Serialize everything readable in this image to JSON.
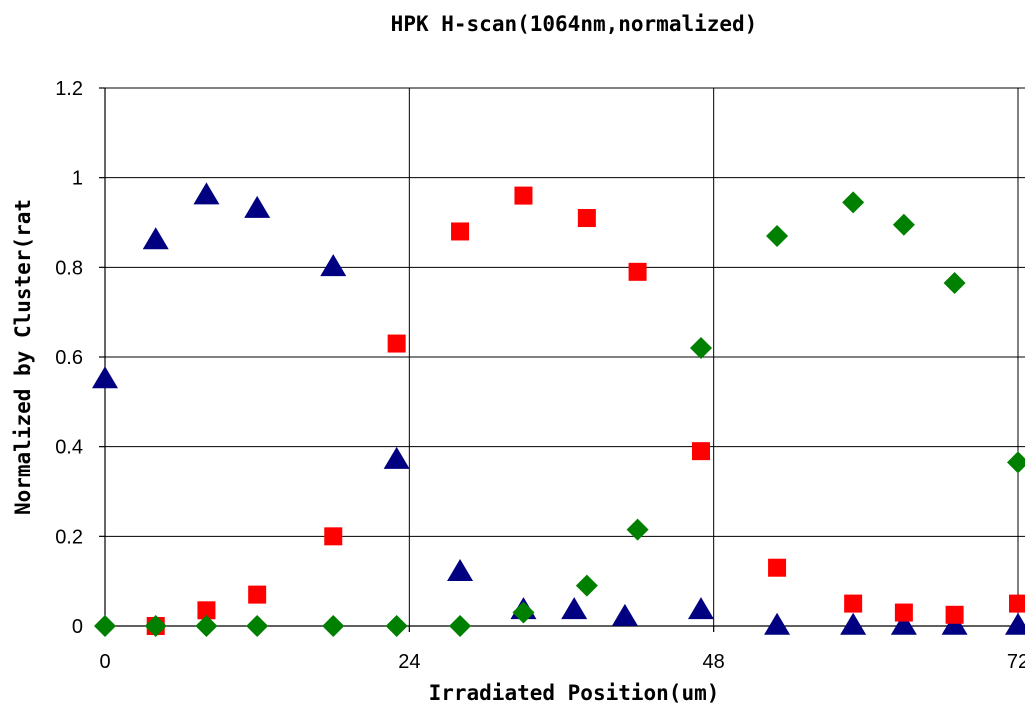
{
  "chart_data": {
    "type": "scatter",
    "title": "HPK H-scan(1064nm,normalized)",
    "xlabel": "Irradiated Position(um)",
    "ylabel": "Normalized by Cluster(rat",
    "xlim": [
      0,
      72
    ],
    "ylim": [
      0,
      1.2
    ],
    "x_ticks": [
      0,
      24,
      48,
      72
    ],
    "x_tick_labels": [
      "0",
      "24",
      "48",
      "72"
    ],
    "y_ticks": [
      0,
      0.2,
      0.4,
      0.6,
      0.8,
      1,
      1.2
    ],
    "y_tick_labels": [
      "0",
      "0.2",
      "0.4",
      "0.6",
      "0.8",
      "1",
      "1.2"
    ],
    "grid": true,
    "legend": "none",
    "series": [
      {
        "marker": "triangle",
        "color": "#000080",
        "points": [
          [
            0,
            0.55
          ],
          [
            4,
            0.86
          ],
          [
            8,
            0.96
          ],
          [
            12,
            0.93
          ],
          [
            18,
            0.8
          ],
          [
            23,
            0.37
          ],
          [
            28,
            0.12
          ],
          [
            33,
            0.035
          ],
          [
            37,
            0.035
          ],
          [
            41,
            0.02
          ],
          [
            47,
            0.035
          ],
          [
            53,
            0.0
          ],
          [
            59,
            0.0
          ],
          [
            63,
            0.0
          ],
          [
            67,
            0.0
          ],
          [
            72,
            0.0
          ]
        ]
      },
      {
        "marker": "square",
        "color": "#FF0000",
        "points": [
          [
            4,
            0.0
          ],
          [
            8,
            0.035
          ],
          [
            12,
            0.07
          ],
          [
            18,
            0.2
          ],
          [
            23,
            0.63
          ],
          [
            28,
            0.88
          ],
          [
            33,
            0.96
          ],
          [
            38,
            0.91
          ],
          [
            42,
            0.79
          ],
          [
            47,
            0.39
          ],
          [
            53,
            0.13
          ],
          [
            59,
            0.05
          ],
          [
            63,
            0.03
          ],
          [
            67,
            0.025
          ],
          [
            72,
            0.05
          ]
        ]
      },
      {
        "marker": "diamond",
        "color": "#008000",
        "points": [
          [
            0,
            0.0
          ],
          [
            4,
            0.0
          ],
          [
            8,
            0.0
          ],
          [
            12,
            0.0
          ],
          [
            18,
            0.0
          ],
          [
            23,
            0.0
          ],
          [
            28,
            0.0
          ],
          [
            33,
            0.03
          ],
          [
            38,
            0.09
          ],
          [
            42,
            0.215
          ],
          [
            47,
            0.62
          ],
          [
            53,
            0.87
          ],
          [
            59,
            0.945
          ],
          [
            63,
            0.895
          ],
          [
            67,
            0.765
          ],
          [
            72,
            0.365
          ]
        ]
      }
    ]
  }
}
